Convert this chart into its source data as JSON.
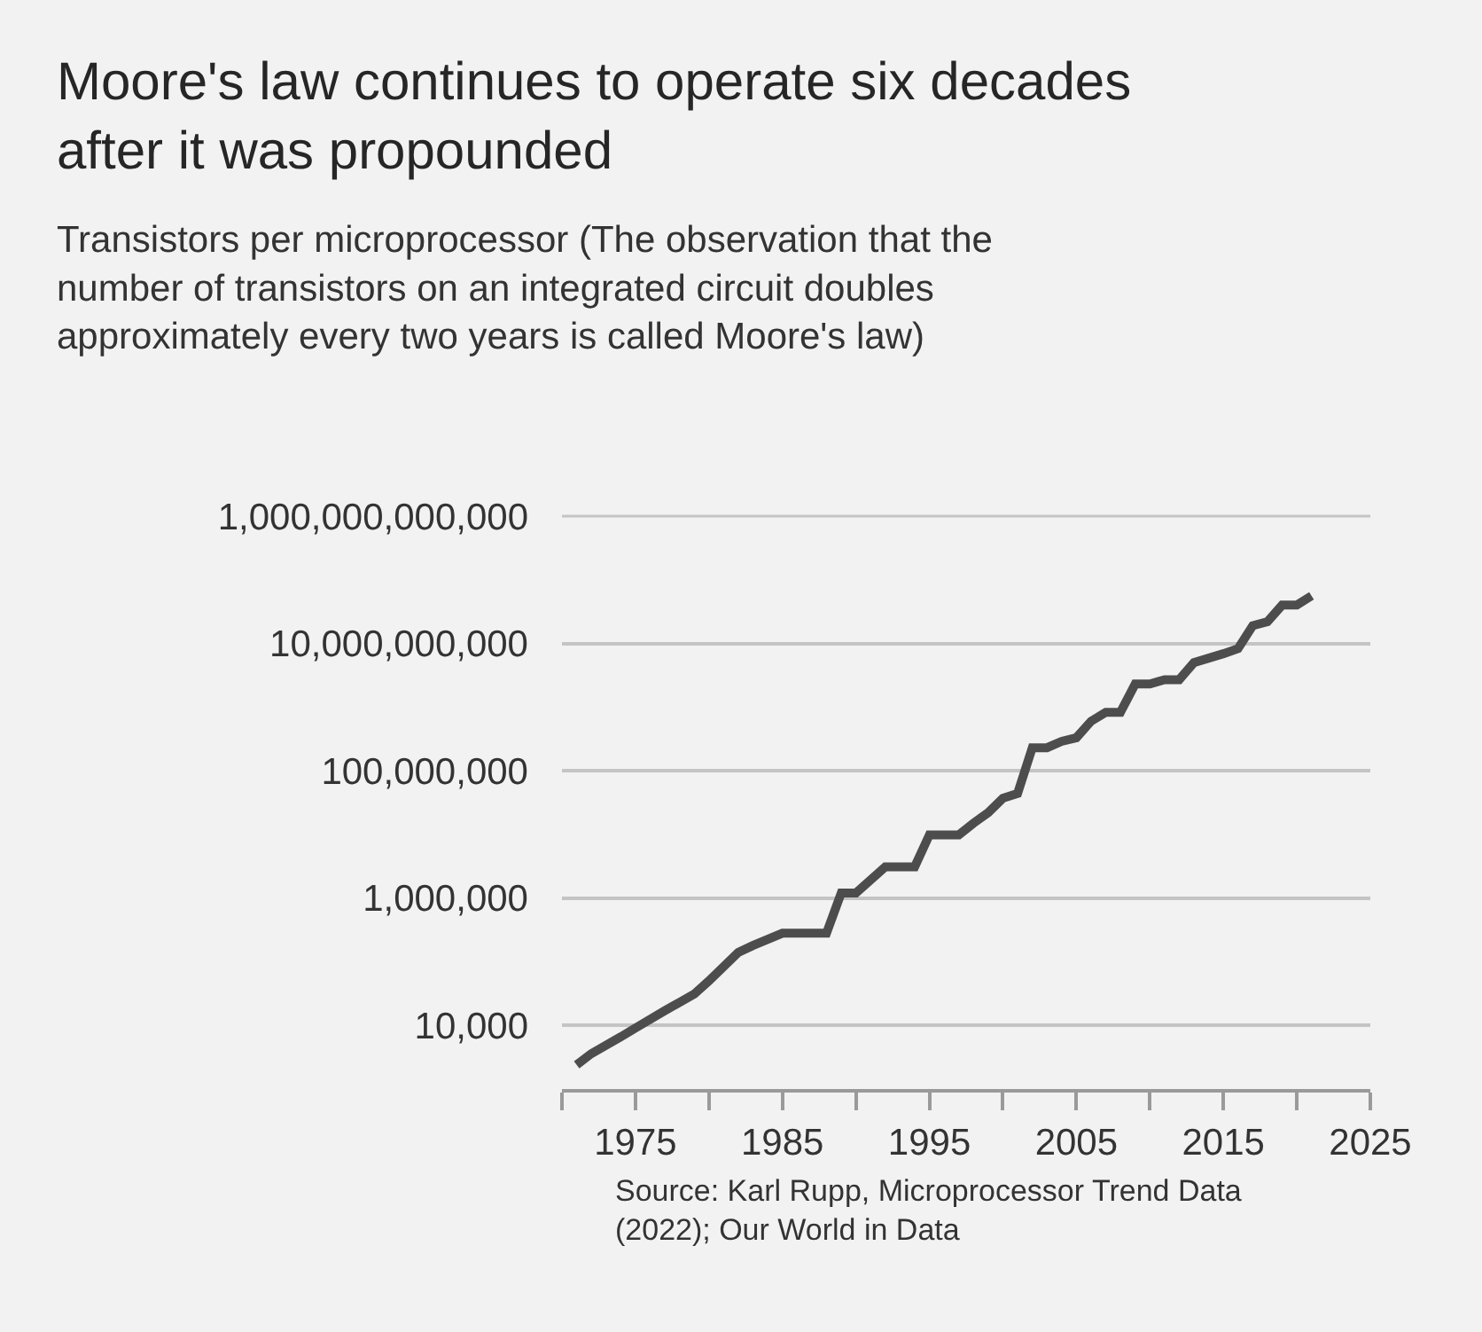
{
  "chart_data": {
    "type": "line",
    "title": "Moore's law continues to operate six decades after it was propounded",
    "subtitle": "Transistors per microprocessor (The observation that the number of transistors on an integrated circuit doubles approximately every two years is called Moore's law)",
    "annotations": [
      "Source: Karl Rupp, Microprocessor Trend Data (2022); Our World in Data"
    ],
    "x": [
      1971,
      1972,
      1974,
      1975,
      1977,
      1979,
      1980,
      1982,
      1983,
      1985,
      1988,
      1989,
      1990,
      1992,
      1994,
      1995,
      1997,
      1998,
      1999,
      2000,
      2001,
      2002,
      2003,
      2004,
      2005,
      2006,
      2007,
      2008,
      2009,
      2010,
      2011,
      2012,
      2013,
      2015,
      2016,
      2017,
      2018,
      2019,
      2020,
      2021
    ],
    "series": [
      {
        "color": "#4d4d4d",
        "values": [
          2400,
          3600,
          6600,
          9100,
          17000,
          31000,
          50000,
          140000,
          180000,
          280000,
          280000,
          1200000,
          1200000,
          3100000,
          3100000,
          9800000,
          9800000,
          15000000,
          22000000,
          37000000,
          44000000,
          230000000,
          230000000,
          290000000,
          330000000,
          600000000,
          830000000,
          830000000,
          2300000000,
          2300000000,
          2700000000,
          2700000000,
          5000000000,
          6900000000,
          8300000000,
          19000000000,
          22000000000,
          40000000000,
          40000000000,
          56000000000
        ]
      }
    ],
    "log": "y",
    "xlim": [
      1970,
      2025
    ],
    "xticks": [
      {
        "value": 1970,
        "label": null
      },
      1975,
      {
        "value": 1980,
        "label": null
      },
      1985,
      {
        "value": 1990,
        "label": null
      },
      1995,
      {
        "value": 2000,
        "label": null
      },
      2005,
      {
        "value": 2010,
        "label": null
      },
      2015,
      {
        "value": 2020,
        "label": null
      },
      2025
    ],
    "ylim": [
      1000,
      1000000000000
    ],
    "yticks": [
      {
        "value": 10000,
        "label": "10,000"
      },
      {
        "value": 1000000,
        "label": "1,000,000"
      },
      {
        "value": 100000000,
        "label": "100,000,000"
      },
      {
        "value": 10000000000,
        "label": "10,000,000,000"
      },
      {
        "value": 1000000000000,
        "label": "1,000,000,000,000"
      }
    ],
    "grid": "y",
    "marker": "none",
    "line_style": "solid"
  }
}
